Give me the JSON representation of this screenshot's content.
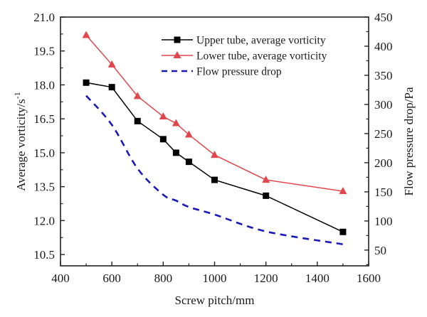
{
  "chart_data": {
    "type": "line",
    "title": "",
    "xlabel": "Screw pitch/mm",
    "ylabel_left": "Average vorticity/s",
    "ylabel_left_superscript": "-1",
    "ylabel_right": "Flow pressure drop/Pa",
    "xlim": [
      400,
      1600
    ],
    "ylim_left": [
      10.0,
      21.0
    ],
    "ylim_right": [
      23,
      450
    ],
    "x_ticks": [
      "400",
      "600",
      "800",
      "1000",
      "1200",
      "1400",
      "1600"
    ],
    "x_tick_values": [
      400,
      600,
      800,
      1000,
      1200,
      1400,
      1600
    ],
    "y_left_ticks": [
      "21.0",
      "19.5",
      "18.0",
      "16.5",
      "15.0",
      "13.5",
      "12.0",
      "10.5"
    ],
    "y_left_tick_values": [
      21.0,
      19.5,
      18.0,
      16.5,
      15.0,
      13.5,
      12.0,
      10.5
    ],
    "y_right_ticks": [
      "450",
      "400",
      "350",
      "300",
      "250",
      "200",
      "150",
      "100",
      "50"
    ],
    "y_right_tick_values": [
      450,
      400,
      350,
      300,
      250,
      200,
      150,
      100,
      50
    ],
    "grid": false,
    "legend_position": "top-right",
    "x": [
      500,
      600,
      700,
      800,
      850,
      900,
      1000,
      1200,
      1500
    ],
    "series": [
      {
        "name": "Upper tube, average vorticity",
        "axis": "left",
        "color": "#000000",
        "marker": "square",
        "line": "solid",
        "values": [
          18.1,
          17.9,
          16.4,
          15.6,
          15.0,
          14.6,
          13.8,
          13.1,
          11.5
        ]
      },
      {
        "name": "Lower tube, average vorticity",
        "axis": "left",
        "color": "#e0474c",
        "marker": "triangle",
        "line": "solid",
        "values": [
          20.2,
          18.9,
          17.5,
          16.6,
          16.3,
          15.8,
          14.9,
          13.8,
          13.3
        ]
      },
      {
        "name": "Flow pressure drop",
        "axis": "right",
        "color": "#1a1ab8",
        "marker": "none",
        "line": "dashed",
        "values": [
          315,
          265,
          190,
          145,
          135,
          124,
          111,
          82,
          60
        ]
      }
    ]
  }
}
